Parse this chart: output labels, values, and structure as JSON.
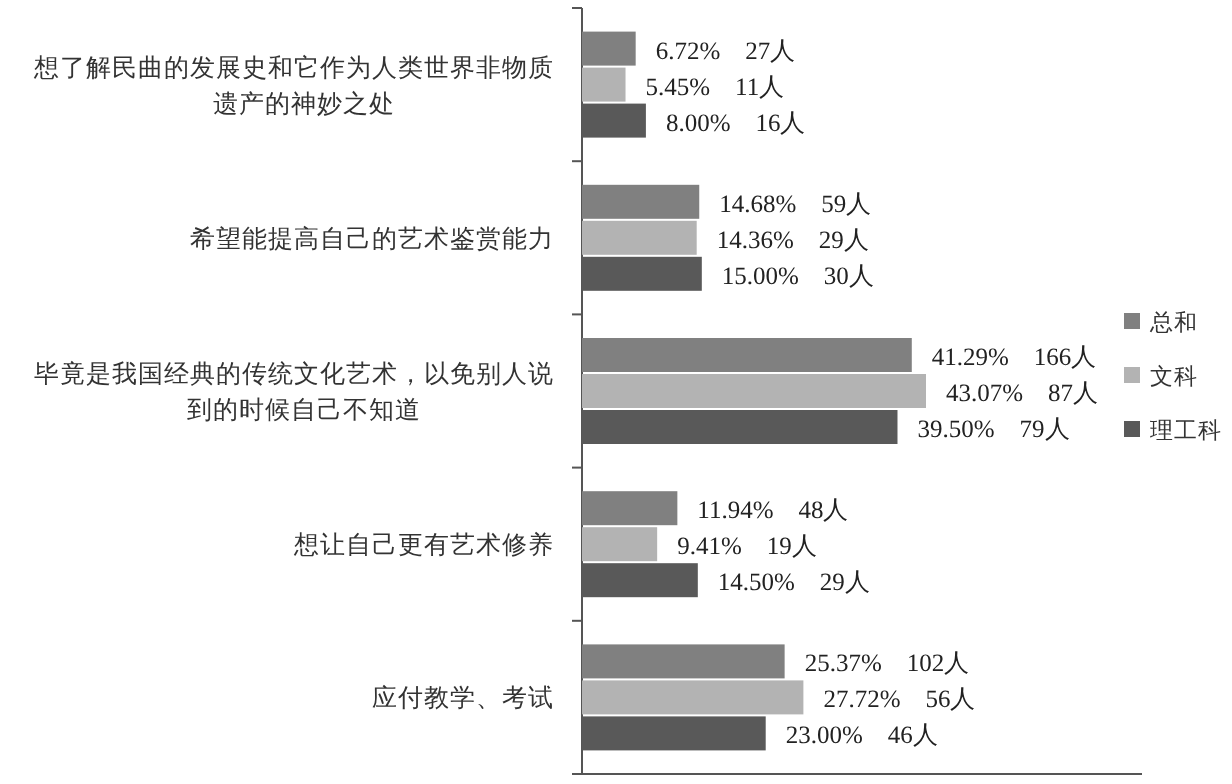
{
  "chart_data": {
    "type": "bar",
    "orientation": "horizontal",
    "legend": "right",
    "categories": [
      "想了解民曲的发展史和它作为人类世界非物质遗产的神妙之处",
      "希望能提高自己的艺术鉴赏能力",
      "毕竟是我国经典的传统文化艺术，以免别人说到的时候自己不知道",
      "想让自己更有艺术修养",
      "应付教学、考试"
    ],
    "series": [
      {
        "name": "总和",
        "color": "#808080",
        "values": [
          6.72,
          14.68,
          41.29,
          11.94,
          25.37
        ],
        "value_labels": [
          "6.72%    27人",
          "14.68%    59人",
          "41.29%    166人",
          "11.94%    48人",
          "25.37%    102人"
        ]
      },
      {
        "name": "文科",
        "color": "#b3b3b3",
        "values": [
          5.45,
          14.36,
          43.07,
          9.41,
          27.72
        ],
        "value_labels": [
          "5.45%    11人",
          "14.36%    29人",
          "43.07%    87人",
          "9.41%    19人",
          "27.72%    56人"
        ]
      },
      {
        "name": "理工科",
        "color": "#595959",
        "values": [
          8.0,
          15.0,
          39.5,
          14.5,
          23.0
        ],
        "value_labels": [
          "8.00%    16人",
          "15.00%    30人",
          "39.50%    79人",
          "14.50%    29人",
          "23.00%    46人"
        ]
      }
    ]
  }
}
